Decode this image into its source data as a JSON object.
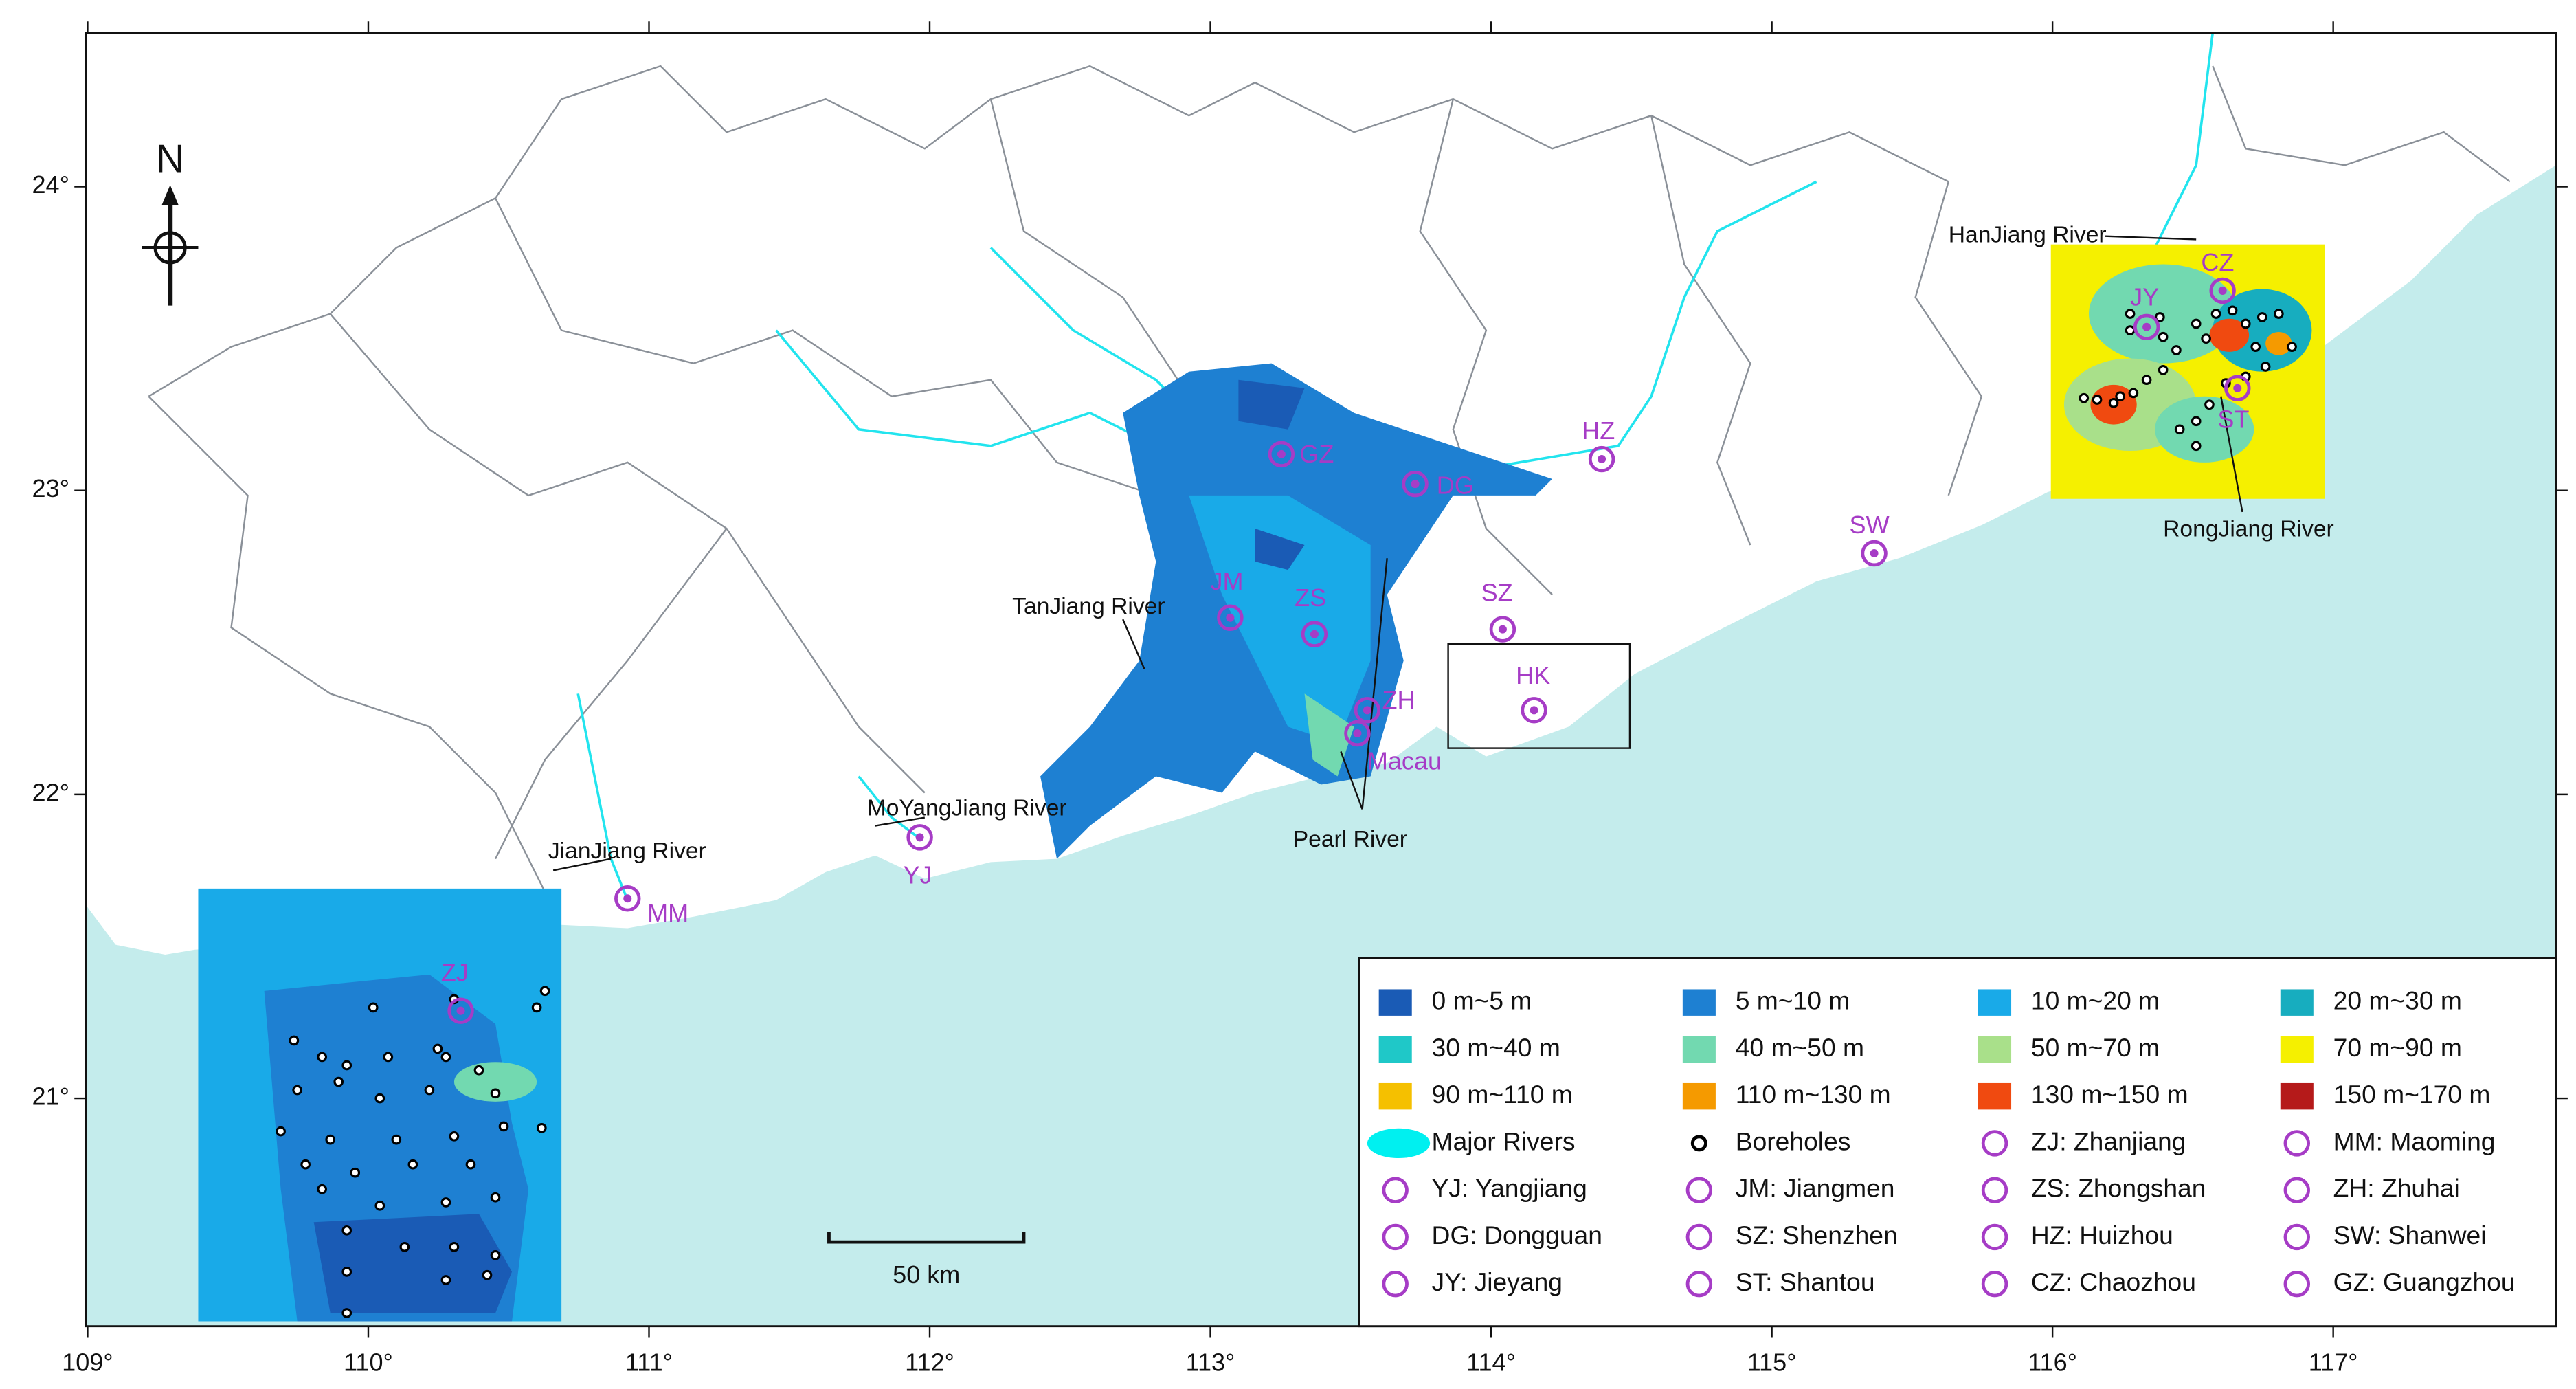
{
  "map": {
    "xticks": [
      {
        "value": 109,
        "label": "109°"
      },
      {
        "value": 110,
        "label": "110°"
      },
      {
        "value": 111,
        "label": "111°"
      },
      {
        "value": 112,
        "label": "112°"
      },
      {
        "value": 113,
        "label": "113°"
      },
      {
        "value": 114,
        "label": "114°"
      },
      {
        "value": 115,
        "label": "115°"
      },
      {
        "value": 116,
        "label": "116°"
      },
      {
        "value": 117,
        "label": "117°"
      }
    ],
    "yticks": [
      {
        "value": 21,
        "label": "21°"
      },
      {
        "value": 22,
        "label": "22°"
      },
      {
        "value": 23,
        "label": "23°"
      },
      {
        "value": 24,
        "label": "24°"
      }
    ],
    "north": "N",
    "scale_bar": "50 km",
    "city_labels": [
      "GZ",
      "DG",
      "HZ",
      "SW",
      "SZ",
      "HK",
      "ZH",
      "Macau",
      "JM",
      "ZS",
      "YJ",
      "MM",
      "ZJ",
      "CZ",
      "JY",
      "ST"
    ],
    "river_labels": [
      "HanJiang River",
      "RongJiang River",
      "TanJiang River",
      "MoYangJiang River",
      "JianJiang River",
      "Pearl River"
    ],
    "legend": [
      {
        "label": "0 m~5 m",
        "color": "#1a5bb5",
        "symbol": "swatch"
      },
      {
        "label": "5 m~10 m",
        "color": "#1e80d2",
        "symbol": "swatch"
      },
      {
        "label": "10 m~20 m",
        "color": "#19aae8",
        "symbol": "swatch"
      },
      {
        "label": "20 m~30 m",
        "color": "#17adbf",
        "symbol": "swatch"
      },
      {
        "label": "30 m~40 m",
        "color": "#1fc8c8",
        "symbol": "swatch"
      },
      {
        "label": "40 m~50 m",
        "color": "#72d9b0",
        "symbol": "swatch"
      },
      {
        "label": "50 m~70 m",
        "color": "#a9e08a",
        "symbol": "swatch"
      },
      {
        "label": "70 m~90 m",
        "color": "#f5f000",
        "symbol": "swatch"
      },
      {
        "label": "90 m~110 m",
        "color": "#f5c000",
        "symbol": "swatch"
      },
      {
        "label": "110 m~130 m",
        "color": "#f59a00",
        "symbol": "swatch"
      },
      {
        "label": "130 m~150 m",
        "color": "#f04a10",
        "symbol": "swatch"
      },
      {
        "label": "150 m~170 m",
        "color": "#b51a1a",
        "symbol": "swatch"
      },
      {
        "label": "Major Rivers",
        "color": "#00f0f0",
        "symbol": "ellipse"
      },
      {
        "label": "Boreholes",
        "color": "#000000",
        "symbol": "dot"
      },
      {
        "label": "ZJ: Zhanjiang",
        "color": "#a63cc6",
        "symbol": "ring"
      },
      {
        "label": "MM: Maoming",
        "color": "#a63cc6",
        "symbol": "ring"
      },
      {
        "label": "YJ: Yangjiang",
        "color": "#a63cc6",
        "symbol": "ring"
      },
      {
        "label": "JM: Jiangmen",
        "color": "#a63cc6",
        "symbol": "ring"
      },
      {
        "label": "ZS: Zhongshan",
        "color": "#a63cc6",
        "symbol": "ring"
      },
      {
        "label": "ZH: Zhuhai",
        "color": "#a63cc6",
        "symbol": "ring"
      },
      {
        "label": "DG: Dongguan",
        "color": "#a63cc6",
        "symbol": "ring"
      },
      {
        "label": "SZ: Shenzhen",
        "color": "#a63cc6",
        "symbol": "ring"
      },
      {
        "label": "HZ: Huizhou",
        "color": "#a63cc6",
        "symbol": "ring"
      },
      {
        "label": "SW: Shanwei",
        "color": "#a63cc6",
        "symbol": "ring"
      },
      {
        "label": "JY: Jieyang",
        "color": "#a63cc6",
        "symbol": "ring"
      },
      {
        "label": "ST: Shantou",
        "color": "#a63cc6",
        "symbol": "ring"
      },
      {
        "label": "CZ: Chaozhou",
        "color": "#a63cc6",
        "symbol": "ring"
      },
      {
        "label": "GZ: Guangzhou",
        "color": "#a63cc6",
        "symbol": "ring"
      }
    ]
  }
}
